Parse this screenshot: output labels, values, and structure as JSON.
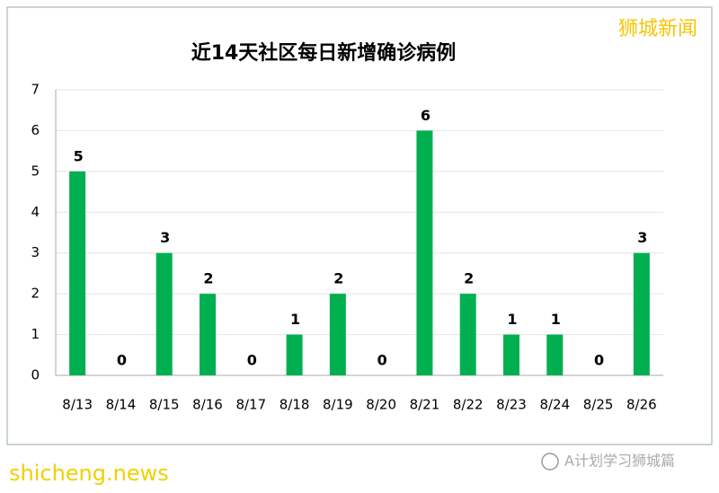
{
  "chart_data": {
    "type": "bar",
    "title": "近14天社区每日新增确诊病例",
    "categories": [
      "8/13",
      "8/14",
      "8/15",
      "8/16",
      "8/17",
      "8/18",
      "8/19",
      "8/20",
      "8/21",
      "8/22",
      "8/23",
      "8/24",
      "8/25",
      "8/26"
    ],
    "values": [
      5,
      0,
      3,
      2,
      0,
      1,
      2,
      0,
      6,
      2,
      1,
      1,
      0,
      3
    ],
    "color": "#00b050",
    "ylim": [
      0,
      7
    ],
    "yticks": [
      0,
      1,
      2,
      3,
      4,
      5,
      6,
      7
    ],
    "grid": true
  },
  "watermark": "狮城新闻",
  "site": "shicheng.news",
  "account": "A计划学习狮城篇"
}
